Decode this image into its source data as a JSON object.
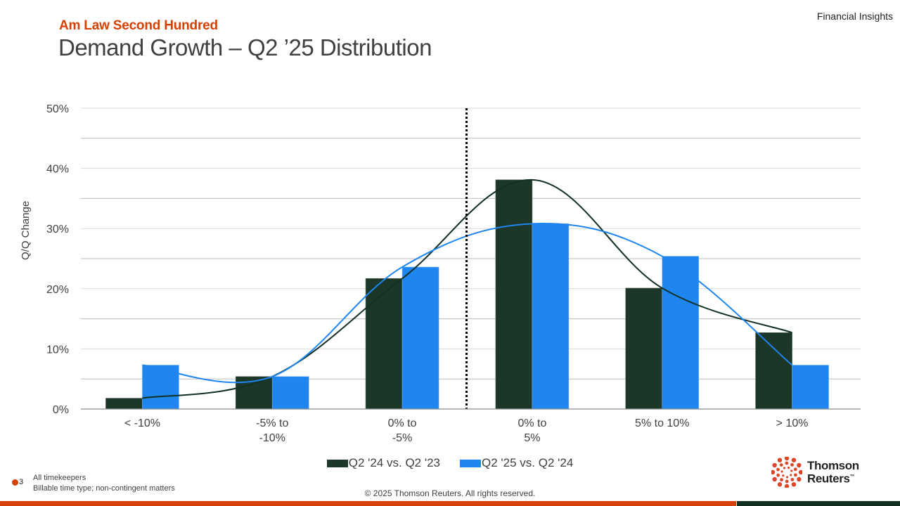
{
  "header": {
    "subtitle": "Am Law Second Hundred",
    "title": "Demand Growth – Q2 ’25 Distribution",
    "brand_tag": "Financial Insights"
  },
  "chart_data": {
    "type": "bar",
    "title": "Demand Growth – Q2 ’25 Distribution",
    "xlabel": "",
    "ylabel": "Q/Q Change",
    "ylim": [
      0,
      50
    ],
    "yticks": [
      "0%",
      "10%",
      "20%",
      "30%",
      "40%",
      "50%"
    ],
    "ytick_values": [
      0,
      10,
      20,
      30,
      40,
      50
    ],
    "minor_gridlines": [
      5,
      15,
      25,
      35,
      45
    ],
    "grid": true,
    "categories": [
      [
        "< -10%"
      ],
      [
        "-5% to",
        "-10%"
      ],
      [
        "0% to",
        "-5%"
      ],
      [
        "0% to",
        "5%"
      ],
      [
        "5% to 10%"
      ],
      [
        "> 10%"
      ]
    ],
    "series": [
      {
        "name": "Q2 '24 vs. Q2 '23",
        "color": "#1c3627",
        "values": [
          1.8,
          5.4,
          21.7,
          38.1,
          20.1,
          12.7
        ],
        "smoothed_line": true
      },
      {
        "name": "Q2 '25 vs. Q2 '24",
        "color": "#1f86f0",
        "values": [
          7.3,
          5.4,
          23.6,
          30.8,
          25.4,
          7.3
        ],
        "smoothed_line": true
      }
    ],
    "annotations": [
      {
        "type": "vertical-dotted-line",
        "between_categories": [
          "0% to -5%",
          "0% to 5%"
        ],
        "meaning": "zero growth divider"
      }
    ],
    "legend_position": "bottom-center"
  },
  "footer": {
    "marker_number": "3",
    "notes": [
      "All timekeepers",
      "Billable time type; non-contingent matters"
    ],
    "copyright": "© 2025 Thomson Reuters. All rights reserved.",
    "logo_line1": "Thomson",
    "logo_line2": "Reuters",
    "logo_tm": "™"
  },
  "colors": {
    "accent_orange": "#d64000",
    "brand_green": "#123021",
    "series_dark": "#1c3627",
    "series_blue": "#1f86f0"
  }
}
